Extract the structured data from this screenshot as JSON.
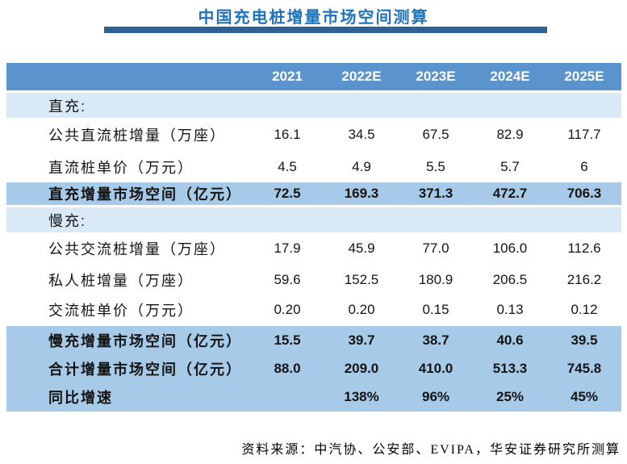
{
  "colors": {
    "title-color": "#2273b6",
    "bar-color": "#2e6194",
    "header-bg": "#5b93cd",
    "section-bg": "#d9e9f6",
    "highlight-bg": "#a8cae9"
  },
  "chart_data": {
    "type": "table",
    "title": "中国充电桩增量市场空间测算",
    "columns": [
      "2021",
      "2022E",
      "2023E",
      "2024E",
      "2025E"
    ],
    "rows": [
      {
        "label": "直充:",
        "values": [
          "",
          "",
          "",
          "",
          ""
        ]
      },
      {
        "label": "公共直流桩增量（万座）",
        "values": [
          "16.1",
          "34.5",
          "67.5",
          "82.9",
          "117.7"
        ]
      },
      {
        "label": "直流桩单价（万元）",
        "values": [
          "4.5",
          "4.9",
          "5.5",
          "5.7",
          "6"
        ]
      },
      {
        "label": "直充增量市场空间（亿元）",
        "values": [
          "72.5",
          "169.3",
          "371.3",
          "472.7",
          "706.3"
        ]
      },
      {
        "label": "慢充:",
        "values": [
          "",
          "",
          "",
          "",
          ""
        ]
      },
      {
        "label": "公共交流桩增量（万座）",
        "values": [
          "17.9",
          "45.9",
          "77.0",
          "106.0",
          "112.6"
        ]
      },
      {
        "label": "私人桩增量（万座）",
        "values": [
          "59.6",
          "152.5",
          "180.9",
          "206.5",
          "216.2"
        ]
      },
      {
        "label": "交流桩单价（万元）",
        "values": [
          "0.20",
          "0.20",
          "0.15",
          "0.13",
          "0.12"
        ]
      },
      {
        "label": "慢充增量市场空间（亿元）",
        "values": [
          "15.5",
          "39.7",
          "38.7",
          "40.6",
          "39.5"
        ]
      },
      {
        "label": "合计增量市场空间（亿元）",
        "values": [
          "88.0",
          "209.0",
          "410.0",
          "513.3",
          "745.8"
        ]
      },
      {
        "label": "同比增速",
        "values": [
          "",
          "138%",
          "96%",
          "25%",
          "45%"
        ]
      }
    ],
    "source_note": "资料来源：中汽协、公安部、EVIPA，华安证券研究所测算"
  }
}
